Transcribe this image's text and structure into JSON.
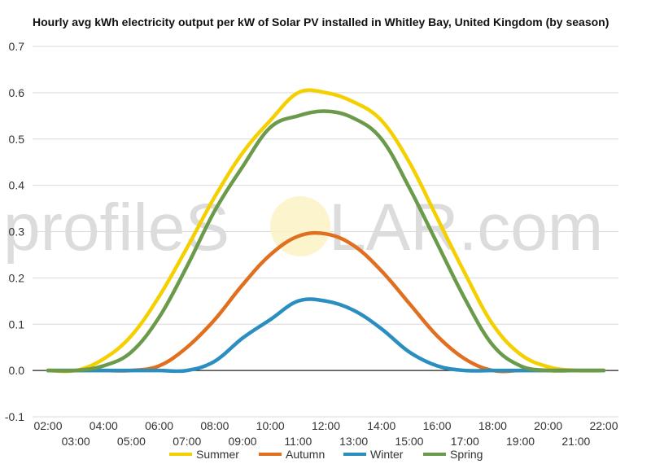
{
  "chart_data": {
    "type": "line",
    "title": "Hourly avg kWh electricity output per kW of Solar PV installed in Whitley Bay, United Kingdom (by season)",
    "xlabel": "",
    "ylabel": "",
    "ylim": [
      -0.1,
      0.7
    ],
    "yticks": [
      "0.7",
      "0.6",
      "0.5",
      "0.4",
      "0.3",
      "0.2",
      "0.1",
      "0.0",
      "-0.1"
    ],
    "x": [
      "02:00",
      "03:00",
      "04:00",
      "05:00",
      "06:00",
      "07:00",
      "08:00",
      "09:00",
      "10:00",
      "11:00",
      "12:00",
      "13:00",
      "14:00",
      "15:00",
      "16:00",
      "17:00",
      "18:00",
      "19:00",
      "20:00",
      "21:00",
      "22:00"
    ],
    "grid": true,
    "legend_position": "bottom",
    "series": [
      {
        "name": "Summer",
        "color": "#f5d000",
        "values": [
          0.0,
          0.0,
          0.025,
          0.075,
          0.16,
          0.265,
          0.375,
          0.47,
          0.54,
          0.6,
          0.6,
          0.58,
          0.54,
          0.45,
          0.33,
          0.21,
          0.1,
          0.035,
          0.008,
          0.0,
          0.0
        ]
      },
      {
        "name": "Autumn",
        "color": "#e07020",
        "values": [
          0.0,
          0.0,
          0.0,
          0.0,
          0.01,
          0.05,
          0.11,
          0.185,
          0.25,
          0.29,
          0.295,
          0.27,
          0.215,
          0.145,
          0.075,
          0.025,
          0.0,
          0.0,
          0.0,
          0.0,
          0.0
        ]
      },
      {
        "name": "Winter",
        "color": "#2a8fc0",
        "values": [
          0.0,
          0.0,
          0.0,
          0.0,
          0.0,
          0.0,
          0.02,
          0.07,
          0.11,
          0.15,
          0.15,
          0.13,
          0.09,
          0.04,
          0.01,
          0.0,
          0.0,
          0.0,
          0.0,
          0.0,
          0.0
        ]
      },
      {
        "name": "Spring",
        "color": "#6b9a4a",
        "values": [
          0.0,
          0.0,
          0.01,
          0.04,
          0.115,
          0.225,
          0.345,
          0.44,
          0.525,
          0.55,
          0.56,
          0.545,
          0.5,
          0.395,
          0.275,
          0.155,
          0.055,
          0.01,
          0.0,
          0.0,
          0.0
        ]
      }
    ]
  },
  "watermark": {
    "left": "profileS",
    "right": "LAR.com"
  }
}
